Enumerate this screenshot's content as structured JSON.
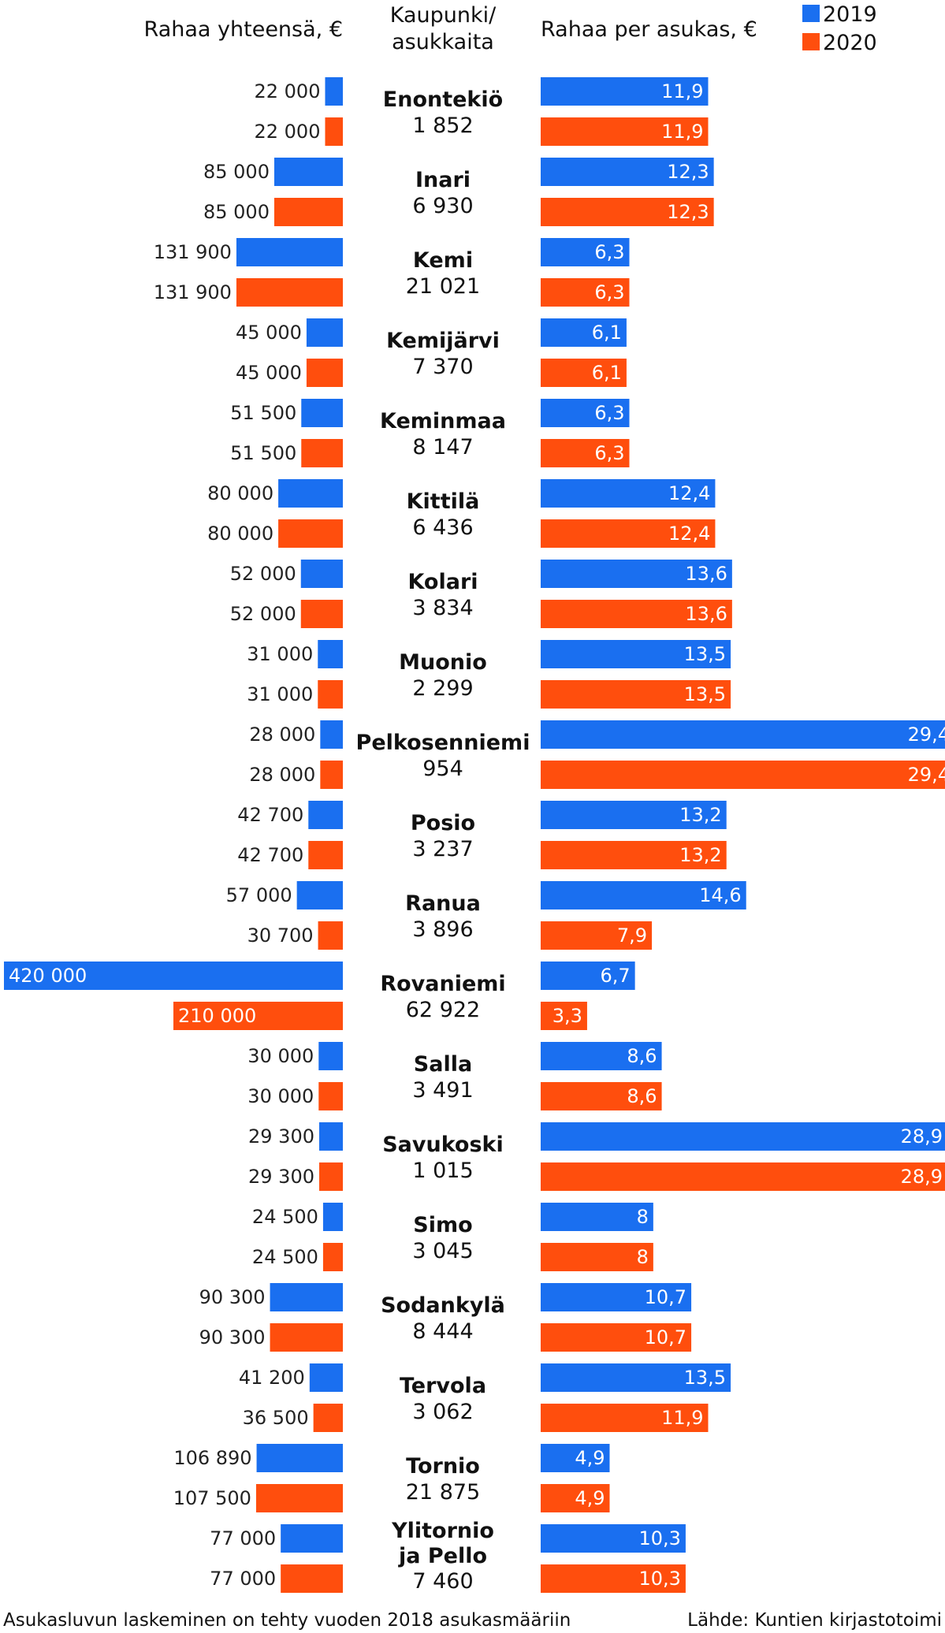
{
  "headers": {
    "left": "Rahaa yhteensä, €",
    "middle": [
      "Kaupunki/",
      "asukkaita"
    ],
    "right": "Rahaa per asukas, €"
  },
  "legend": [
    {
      "label": "2019",
      "color": "#1a6ff0"
    },
    {
      "label": "2020",
      "color": "#ff4e0d"
    }
  ],
  "footer": {
    "note": "Asukasluvun laskeminen on tehty vuoden 2018 asukasmääriin",
    "source": "Lähde: Kuntien kirjastotoimi"
  },
  "chart_data": {
    "type": "bar",
    "series": [
      {
        "name": "2019",
        "color": "#1a6ff0"
      },
      {
        "name": "2020",
        "color": "#ff4e0d"
      }
    ],
    "rows": [
      {
        "city": [
          "Enontekiö"
        ],
        "pop": "1 852",
        "total": [
          "22 000",
          "22 000"
        ],
        "total_v": [
          22000,
          22000
        ],
        "per": [
          "11,9",
          "11,9"
        ],
        "per_v": [
          11.9,
          11.9
        ]
      },
      {
        "city": [
          "Inari"
        ],
        "pop": "6 930",
        "total": [
          "85 000",
          "85 000"
        ],
        "total_v": [
          85000,
          85000
        ],
        "per": [
          "12,3",
          "12,3"
        ],
        "per_v": [
          12.3,
          12.3
        ]
      },
      {
        "city": [
          "Kemi"
        ],
        "pop": "21 021",
        "total": [
          "131 900",
          "131 900"
        ],
        "total_v": [
          131900,
          131900
        ],
        "per": [
          "6,3",
          "6,3"
        ],
        "per_v": [
          6.3,
          6.3
        ]
      },
      {
        "city": [
          "Kemijärvi"
        ],
        "pop": "7 370",
        "total": [
          "45 000",
          "45 000"
        ],
        "total_v": [
          45000,
          45000
        ],
        "per": [
          "6,1",
          "6,1"
        ],
        "per_v": [
          6.1,
          6.1
        ]
      },
      {
        "city": [
          "Keminmaa"
        ],
        "pop": "8 147",
        "total": [
          "51 500",
          "51 500"
        ],
        "total_v": [
          51500,
          51500
        ],
        "per": [
          "6,3",
          "6,3"
        ],
        "per_v": [
          6.3,
          6.3
        ]
      },
      {
        "city": [
          "Kittilä"
        ],
        "pop": "6 436",
        "total": [
          "80 000",
          "80 000"
        ],
        "total_v": [
          80000,
          80000
        ],
        "per": [
          "12,4",
          "12,4"
        ],
        "per_v": [
          12.4,
          12.4
        ]
      },
      {
        "city": [
          "Kolari"
        ],
        "pop": "3 834",
        "total": [
          "52 000",
          "52 000"
        ],
        "total_v": [
          52000,
          52000
        ],
        "per": [
          "13,6",
          "13,6"
        ],
        "per_v": [
          13.6,
          13.6
        ]
      },
      {
        "city": [
          "Muonio"
        ],
        "pop": "2 299",
        "total": [
          "31 000",
          "31 000"
        ],
        "total_v": [
          31000,
          31000
        ],
        "per": [
          "13,5",
          "13,5"
        ],
        "per_v": [
          13.5,
          13.5
        ]
      },
      {
        "city": [
          "Pelkosenniemi"
        ],
        "pop": "954",
        "total": [
          "28 000",
          "28 000"
        ],
        "total_v": [
          28000,
          28000
        ],
        "per": [
          "29,4",
          "29,4"
        ],
        "per_v": [
          29.4,
          29.4
        ]
      },
      {
        "city": [
          "Posio"
        ],
        "pop": "3 237",
        "total": [
          "42 700",
          "42 700"
        ],
        "total_v": [
          42700,
          42700
        ],
        "per": [
          "13,2",
          "13,2"
        ],
        "per_v": [
          13.2,
          13.2
        ]
      },
      {
        "city": [
          "Ranua"
        ],
        "pop": "3 896",
        "total": [
          "57 000",
          "30 700"
        ],
        "total_v": [
          57000,
          30700
        ],
        "per": [
          "14,6",
          "7,9"
        ],
        "per_v": [
          14.6,
          7.9
        ]
      },
      {
        "city": [
          "Rovaniemi"
        ],
        "pop": "62 922",
        "total": [
          "420 000",
          "210 000"
        ],
        "total_v": [
          420000,
          210000
        ],
        "per": [
          "6,7",
          "3,3"
        ],
        "per_v": [
          6.7,
          3.3
        ]
      },
      {
        "city": [
          "Salla"
        ],
        "pop": "3 491",
        "total": [
          "30 000",
          "30 000"
        ],
        "total_v": [
          30000,
          30000
        ],
        "per": [
          "8,6",
          "8,6"
        ],
        "per_v": [
          8.6,
          8.6
        ]
      },
      {
        "city": [
          "Savukoski"
        ],
        "pop": "1 015",
        "total": [
          "29 300",
          "29 300"
        ],
        "total_v": [
          29300,
          29300
        ],
        "per": [
          "28,9",
          "28,9"
        ],
        "per_v": [
          28.9,
          28.9
        ]
      },
      {
        "city": [
          "Simo"
        ],
        "pop": "3 045",
        "total": [
          "24 500",
          "24 500"
        ],
        "total_v": [
          24500,
          24500
        ],
        "per": [
          "8",
          "8"
        ],
        "per_v": [
          8,
          8
        ]
      },
      {
        "city": [
          "Sodankylä"
        ],
        "pop": "8 444",
        "total": [
          "90 300",
          "90 300"
        ],
        "total_v": [
          90300,
          90300
        ],
        "per": [
          "10,7",
          "10,7"
        ],
        "per_v": [
          10.7,
          10.7
        ]
      },
      {
        "city": [
          "Tervola"
        ],
        "pop": "3 062",
        "total": [
          "41 200",
          "36 500"
        ],
        "total_v": [
          41200,
          36500
        ],
        "per": [
          "13,5",
          "11,9"
        ],
        "per_v": [
          13.5,
          11.9
        ]
      },
      {
        "city": [
          "Tornio"
        ],
        "pop": "21 875",
        "total": [
          "106 890",
          "107 500"
        ],
        "total_v": [
          106890,
          107500
        ],
        "per": [
          "4,9",
          "4,9"
        ],
        "per_v": [
          4.9,
          4.9
        ]
      },
      {
        "city": [
          "Ylitornio",
          "ja Pello"
        ],
        "pop": "7 460",
        "total": [
          "77 000",
          "77 000"
        ],
        "total_v": [
          77000,
          77000
        ],
        "per": [
          "10,3",
          "10,3"
        ],
        "per_v": [
          10.3,
          10.3
        ]
      }
    ]
  }
}
